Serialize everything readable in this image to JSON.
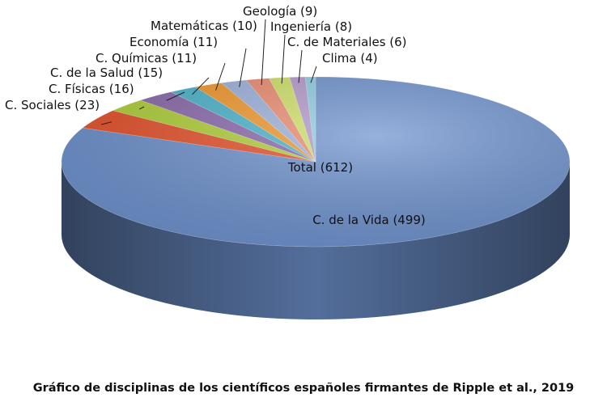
{
  "chart_data": {
    "type": "pie",
    "style": "3d",
    "title": "Gráfico de disciplinas de los científicos españoles firmantes de Ripple et al., 2019",
    "total_label": "Total (612)",
    "total": 612,
    "slices": [
      {
        "label": "C. de la Vida (499)",
        "value": 499,
        "color": "#6f93cf"
      },
      {
        "label": "C. Sociales (23)",
        "value": 23,
        "color": "#e8532c"
      },
      {
        "label": "C. Físicas (16)",
        "value": 16,
        "color": "#b3d33a"
      },
      {
        "label": "C. de la Salud (15)",
        "value": 15,
        "color": "#8d6cae"
      },
      {
        "label": "C. Químicas (11)",
        "value": 11,
        "color": "#4db6cf"
      },
      {
        "label": "Economía (11)",
        "value": 11,
        "color": "#f59a2d"
      },
      {
        "label": "Matemáticas (10)",
        "value": 10,
        "color": "#9fb4df"
      },
      {
        "label": "Geología (9)",
        "value": 9,
        "color": "#ee8e72"
      },
      {
        "label": "Ingeniería (8)",
        "value": 8,
        "color": "#d2e46a"
      },
      {
        "label": "C. de Materiales (6)",
        "value": 6,
        "color": "#b69bcd"
      },
      {
        "label": "Clima (4)",
        "value": 4,
        "color": "#8fd0e2"
      }
    ]
  }
}
